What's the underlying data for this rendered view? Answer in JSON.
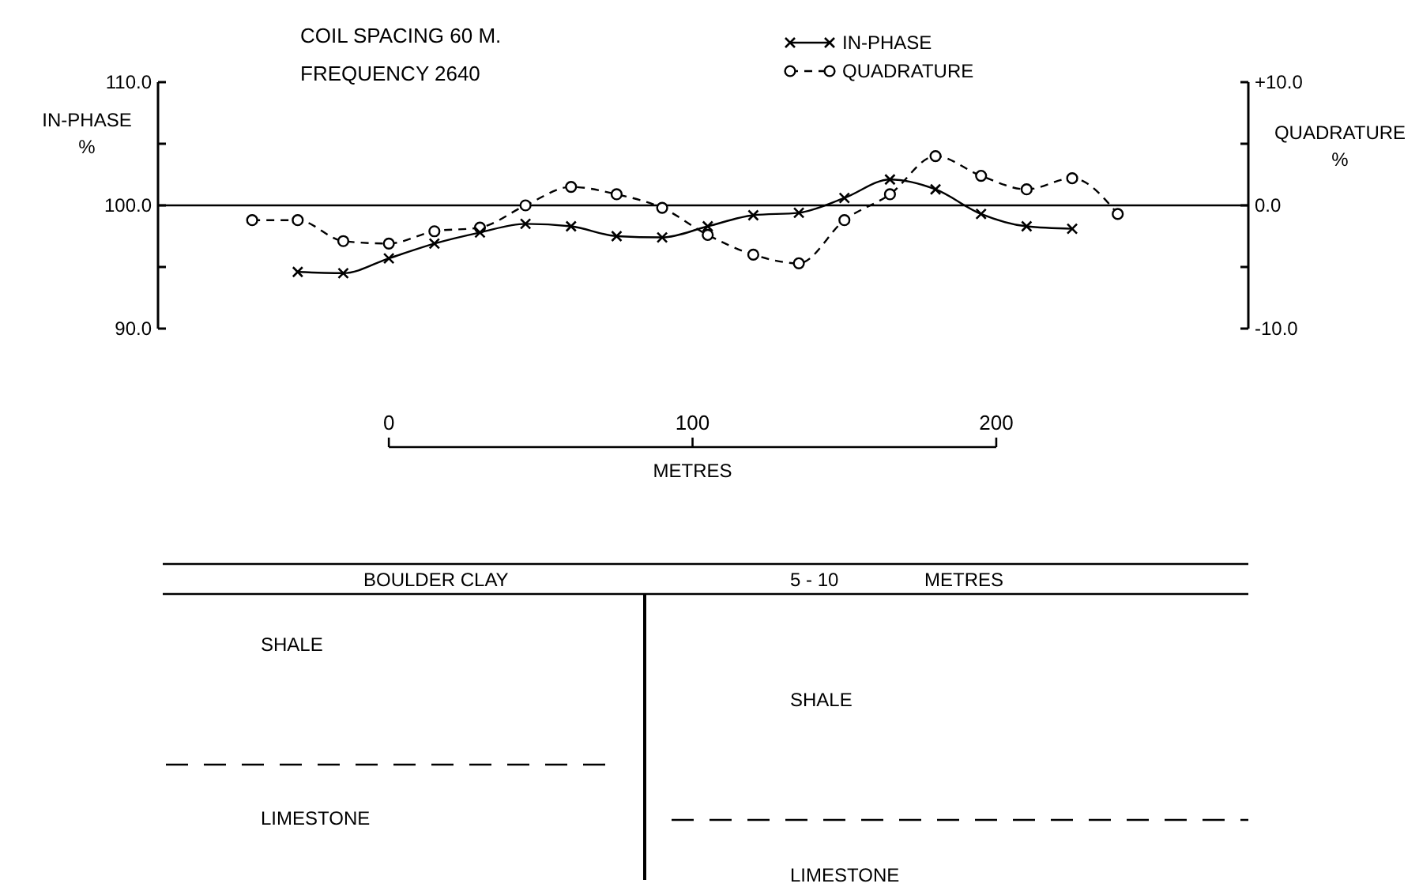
{
  "chart_data": {
    "type": "line",
    "title": "COIL SPACING 60 M.",
    "subtitle": "FREQUENCY 2640",
    "xlabel": "METRES",
    "ylabel": "IN-PHASE %",
    "y2label": "QUADRATURE %",
    "xlim": [
      -76,
      283
    ],
    "xticks": [
      0,
      100,
      200
    ],
    "ylim": [
      90,
      110
    ],
    "yticks": [
      {
        "value": 90,
        "label": "90.0"
      },
      {
        "value": 95,
        "label": null
      },
      {
        "value": 100,
        "label": "100.0"
      },
      {
        "value": 105,
        "label": null
      },
      {
        "value": 110,
        "label": "110.0"
      }
    ],
    "y2lim": [
      -10,
      10
    ],
    "y2ticks": [
      {
        "value": -10,
        "label": "-10.0"
      },
      {
        "value": -5,
        "label": null
      },
      {
        "value": 0,
        "label": "0.0"
      },
      {
        "value": 5,
        "label": null
      },
      {
        "value": 10,
        "label": "+10.0"
      }
    ],
    "series": [
      {
        "name": "IN-PHASE",
        "color": "#000000",
        "marker": "cross",
        "line_style": "solid",
        "x": [
          -30,
          -15,
          0,
          15,
          30,
          45,
          60,
          75,
          90,
          105,
          120,
          135,
          150,
          165,
          180,
          195,
          210,
          225
        ],
        "values": [
          94.6,
          94.5,
          95.7,
          96.9,
          97.8,
          98.5,
          98.3,
          97.5,
          97.4,
          98.3,
          99.2,
          99.4,
          100.6,
          102.1,
          101.3,
          99.3,
          98.3,
          98.1
        ]
      },
      {
        "name": "QUADRATURE",
        "color": "#000000",
        "marker": "circle",
        "line_style": "dashed",
        "axis": "y2",
        "x": [
          -45,
          -30,
          -15,
          0,
          15,
          30,
          45,
          60,
          75,
          90,
          105,
          120,
          135,
          150,
          165,
          180,
          195,
          210,
          225,
          240
        ],
        "values": [
          -1.2,
          -1.2,
          -2.9,
          -3.1,
          -2.1,
          -1.8,
          0.0,
          1.5,
          0.9,
          -0.2,
          -2.4,
          -4.0,
          -4.7,
          -1.2,
          0.9,
          4.0,
          2.4,
          1.3,
          2.2,
          -0.7
        ]
      }
    ],
    "ref_lines": [
      {
        "axis": "y",
        "value": 100,
        "color": "#000000"
      }
    ],
    "legend": "top right",
    "grid": false,
    "annotations": [
      "BOULDER  CLAY",
      "5 - 10",
      "METRES",
      "SHALE",
      "LIMESTONE",
      "SHALE",
      "LIMESTONE"
    ]
  }
}
